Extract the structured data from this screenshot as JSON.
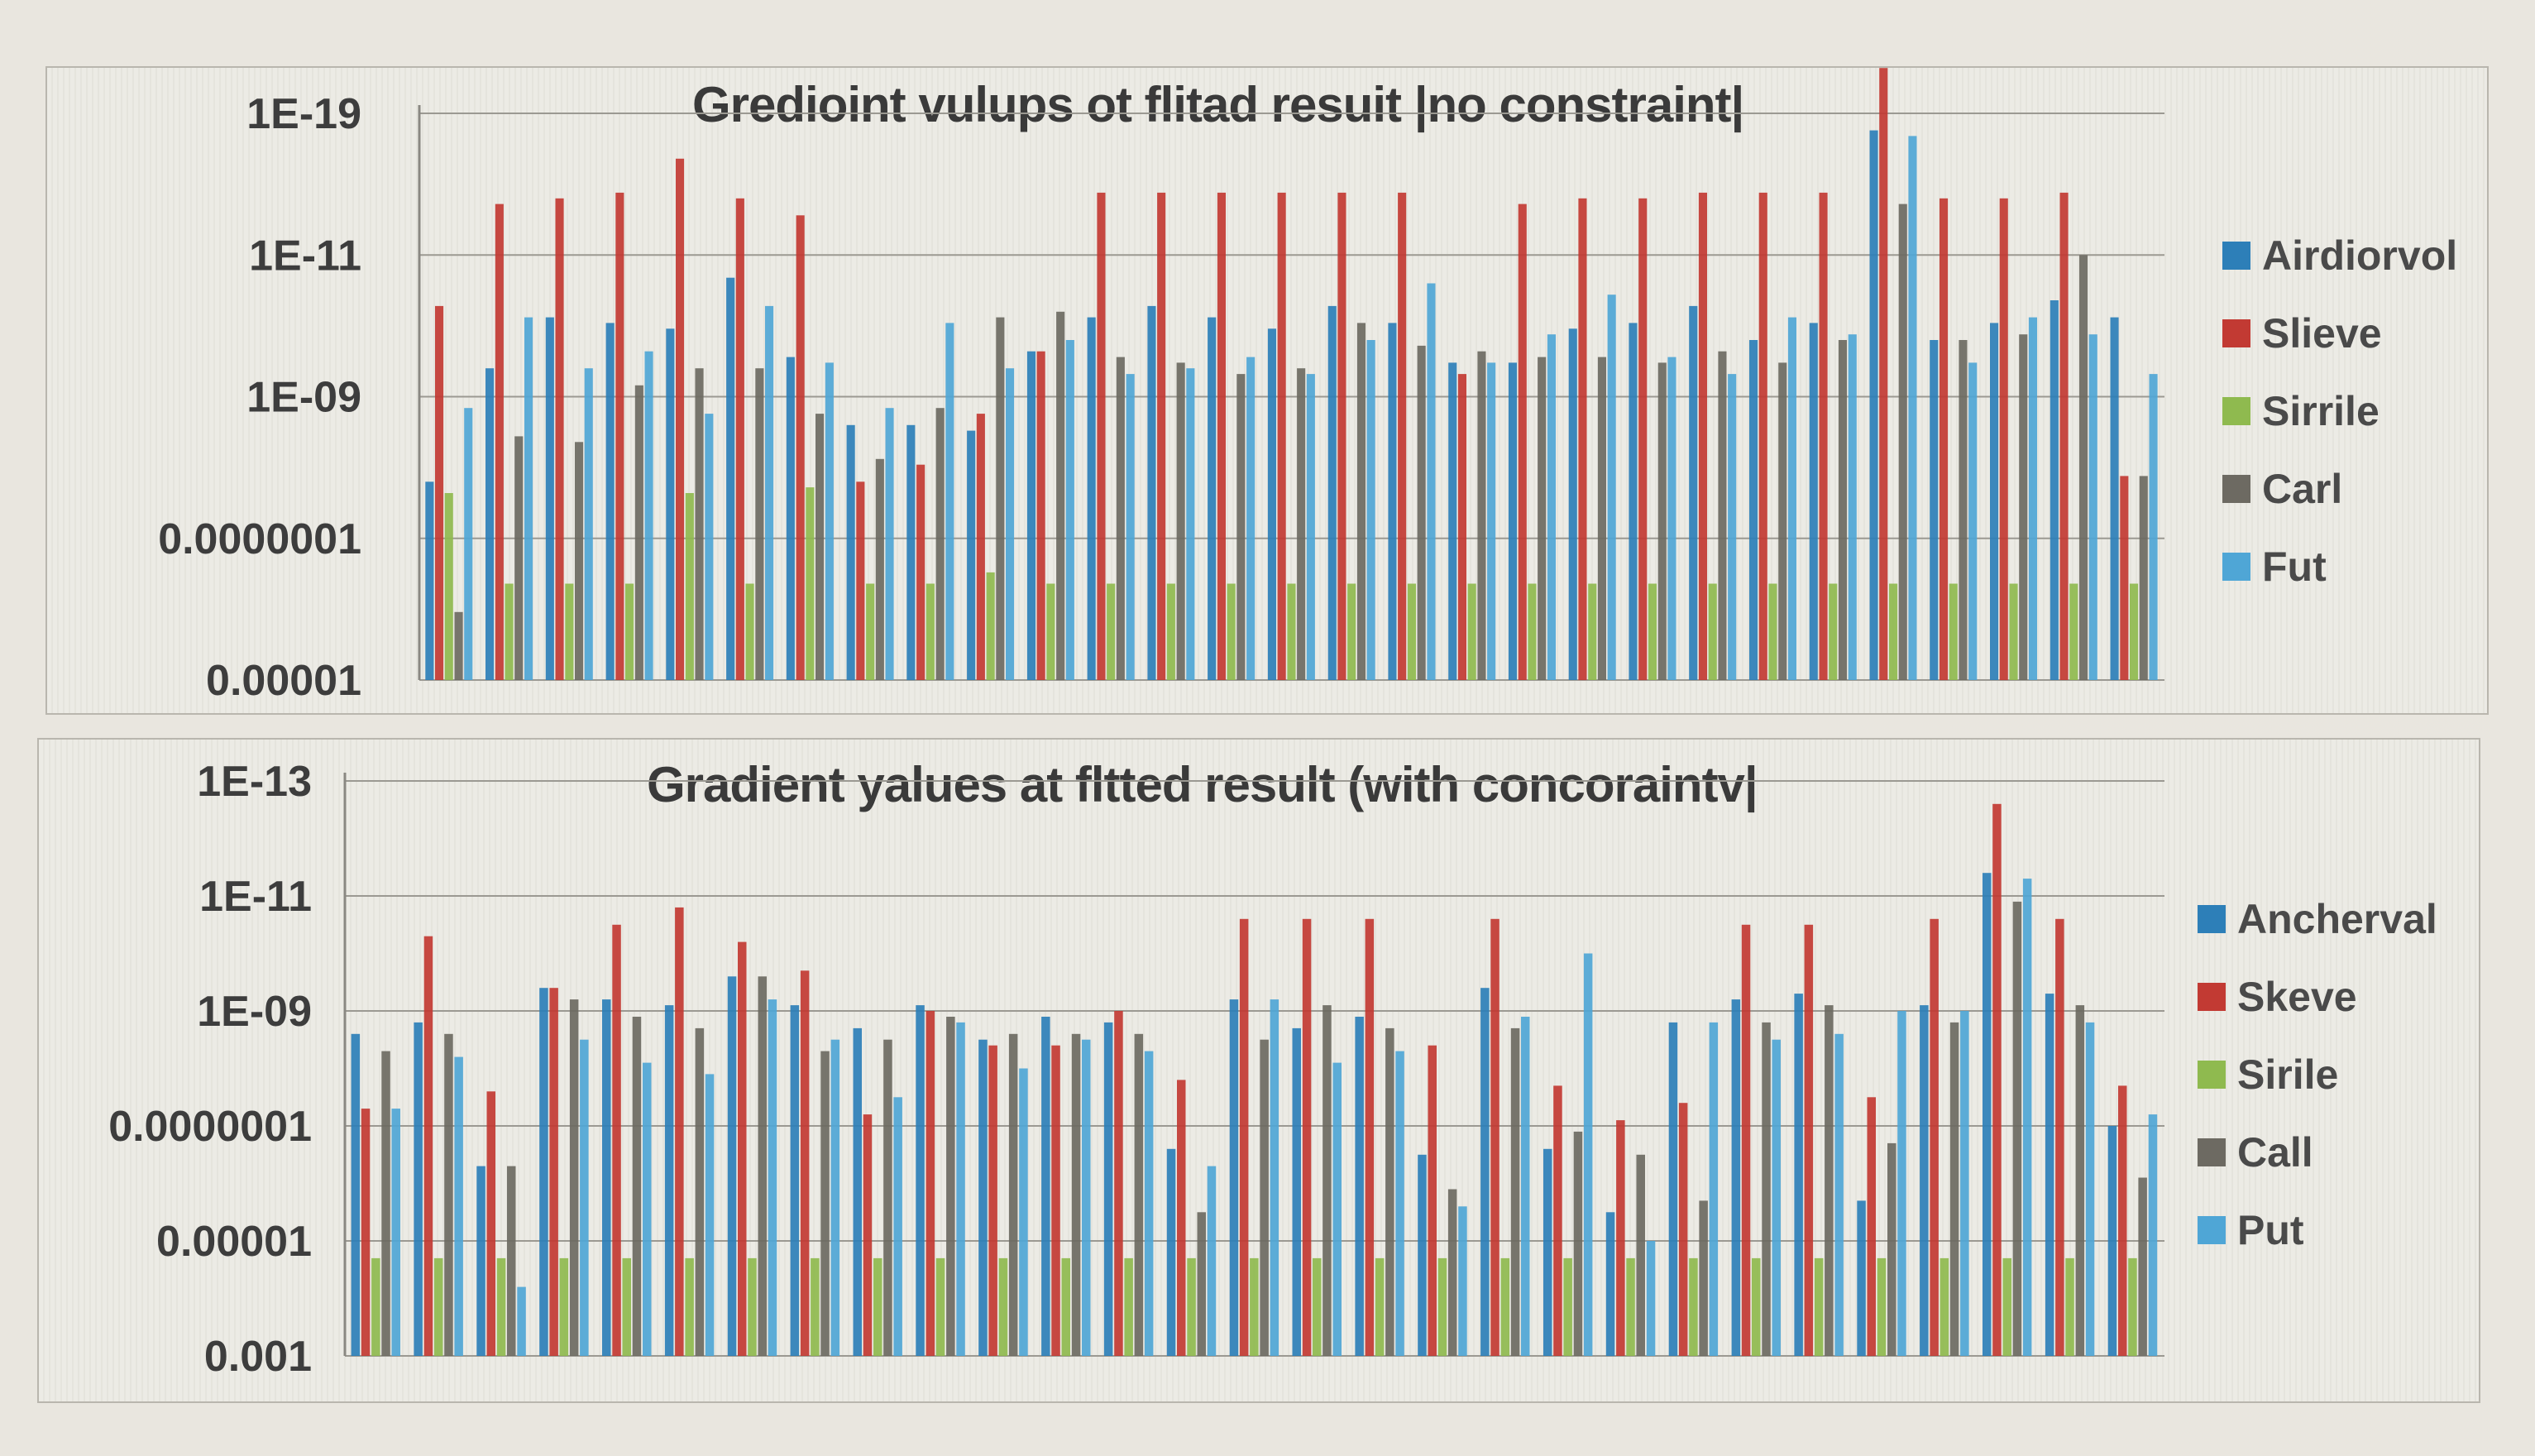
{
  "chart_data": [
    {
      "type": "bar",
      "title": "Gredioint vulups ot flitad resuit |no constraint|",
      "ylabel": "",
      "yscale": "log",
      "ticks": [
        "1E-19",
        "1E-11",
        "1E-09",
        "0.0000001",
        "0.00001"
      ],
      "legend_position": "right",
      "series": [
        {
          "name": "Airdiorvol",
          "color": "#2d7fb8"
        },
        {
          "name": "Slieve",
          "color": "#c23a33"
        },
        {
          "name": "Sirrile",
          "color": "#8fba4f"
        },
        {
          "name": "Carl",
          "color": "#6d6a62"
        },
        {
          "name": "Fut",
          "color": "#4fa6d6"
        }
      ],
      "group_count": 29,
      "values": [
        [
          0.35,
          0.66,
          0.33,
          0.12,
          0.48
        ],
        [
          0.55,
          0.84,
          0.17,
          0.43,
          0.64
        ],
        [
          0.64,
          0.85,
          0.17,
          0.42,
          0.55
        ],
        [
          0.63,
          0.86,
          0.17,
          0.52,
          0.58
        ],
        [
          0.62,
          0.92,
          0.33,
          0.55,
          0.47
        ],
        [
          0.71,
          0.85,
          0.17,
          0.55,
          0.66
        ],
        [
          0.57,
          0.82,
          0.34,
          0.47,
          0.56
        ],
        [
          0.45,
          0.35,
          0.17,
          0.39,
          0.48
        ],
        [
          0.45,
          0.38,
          0.17,
          0.48,
          0.63
        ],
        [
          0.44,
          0.47,
          0.19,
          0.64,
          0.55
        ],
        [
          0.58,
          0.58,
          0.17,
          0.65,
          0.6
        ],
        [
          0.64,
          0.86,
          0.17,
          0.57,
          0.54
        ],
        [
          0.66,
          0.86,
          0.17,
          0.56,
          0.55
        ],
        [
          0.64,
          0.86,
          0.17,
          0.54,
          0.57
        ],
        [
          0.62,
          0.86,
          0.17,
          0.55,
          0.54
        ],
        [
          0.66,
          0.86,
          0.17,
          0.63,
          0.6
        ],
        [
          0.63,
          0.86,
          0.17,
          0.59,
          0.7
        ],
        [
          0.56,
          0.54,
          0.17,
          0.58,
          0.56
        ],
        [
          0.56,
          0.84,
          0.17,
          0.57,
          0.61
        ],
        [
          0.62,
          0.85,
          0.17,
          0.57,
          0.68
        ],
        [
          0.63,
          0.85,
          0.17,
          0.56,
          0.57
        ],
        [
          0.66,
          0.86,
          0.17,
          0.58,
          0.54
        ],
        [
          0.6,
          0.86,
          0.17,
          0.56,
          0.64
        ],
        [
          0.63,
          0.86,
          0.17,
          0.6,
          0.61
        ],
        [
          0.97,
          1.08,
          0.17,
          0.84,
          0.96
        ],
        [
          0.6,
          0.85,
          0.17,
          0.6,
          0.56
        ],
        [
          0.63,
          0.85,
          0.17,
          0.61,
          0.64
        ],
        [
          0.67,
          0.86,
          0.17,
          0.75,
          0.61
        ],
        [
          0.64,
          0.36,
          0.17,
          0.36,
          0.54
        ]
      ]
    },
    {
      "type": "bar",
      "title": "Gradient yalues at fltted result (with concoraintv|",
      "ylabel": "",
      "yscale": "log",
      "ticks": [
        "1E-13",
        "1E-11",
        "1E-09",
        "0.0000001",
        "0.00001",
        "0.001"
      ],
      "legend_position": "right",
      "series": [
        {
          "name": "Ancherval",
          "color": "#2d7fb8"
        },
        {
          "name": "Skeve",
          "color": "#c23a33"
        },
        {
          "name": "Sirile",
          "color": "#8fba4f"
        },
        {
          "name": "Call",
          "color": "#6d6a62"
        },
        {
          "name": "Put",
          "color": "#4fa6d6"
        }
      ],
      "group_count": 29,
      "values": [
        [
          0.56,
          0.43,
          0.17,
          0.53,
          0.43
        ],
        [
          0.58,
          0.73,
          0.17,
          0.56,
          0.52
        ],
        [
          0.33,
          0.46,
          0.17,
          0.33,
          0.12
        ],
        [
          0.64,
          0.64,
          0.17,
          0.62,
          0.55
        ],
        [
          0.62,
          0.75,
          0.17,
          0.59,
          0.51
        ],
        [
          0.61,
          0.78,
          0.17,
          0.57,
          0.49
        ],
        [
          0.66,
          0.72,
          0.17,
          0.66,
          0.62
        ],
        [
          0.61,
          0.67,
          0.17,
          0.53,
          0.55
        ],
        [
          0.57,
          0.42,
          0.17,
          0.55,
          0.45
        ],
        [
          0.61,
          0.6,
          0.17,
          0.59,
          0.58
        ],
        [
          0.55,
          0.54,
          0.17,
          0.56,
          0.5
        ],
        [
          0.59,
          0.54,
          0.17,
          0.56,
          0.55
        ],
        [
          0.58,
          0.6,
          0.17,
          0.56,
          0.53
        ],
        [
          0.36,
          0.48,
          0.17,
          0.25,
          0.33
        ],
        [
          0.62,
          0.76,
          0.17,
          0.55,
          0.62
        ],
        [
          0.57,
          0.76,
          0.17,
          0.61,
          0.51
        ],
        [
          0.59,
          0.76,
          0.17,
          0.57,
          0.53
        ],
        [
          0.35,
          0.54,
          0.17,
          0.29,
          0.26
        ],
        [
          0.64,
          0.76,
          0.17,
          0.57,
          0.59
        ],
        [
          0.36,
          0.47,
          0.17,
          0.39,
          0.7
        ],
        [
          0.25,
          0.41,
          0.17,
          0.35,
          0.2
        ],
        [
          0.58,
          0.44,
          0.17,
          0.27,
          0.58
        ],
        [
          0.62,
          0.75,
          0.17,
          0.58,
          0.55
        ],
        [
          0.63,
          0.75,
          0.17,
          0.61,
          0.56
        ],
        [
          0.27,
          0.45,
          0.17,
          0.37,
          0.6
        ],
        [
          0.61,
          0.76,
          0.17,
          0.58,
          0.6
        ],
        [
          0.84,
          0.96,
          0.17,
          0.79,
          0.83
        ],
        [
          0.63,
          0.76,
          0.17,
          0.61,
          0.58
        ],
        [
          0.4,
          0.47,
          0.17,
          0.31,
          0.42
        ]
      ]
    }
  ]
}
